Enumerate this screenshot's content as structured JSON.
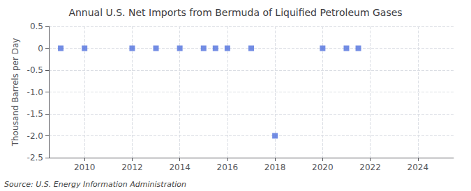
{
  "chart_data": {
    "type": "scatter",
    "title": "Annual U.S. Net Imports from Bermuda of Liquified Petroleum Gases",
    "ylabel": "Thousand Barrels per Day",
    "source": "Source: U.S. Energy Information Administration",
    "x": [
      2009,
      2010,
      2012,
      2013,
      2014,
      2015,
      2015.5,
      2016,
      2017,
      2018,
      2020,
      2021,
      2021.5
    ],
    "values": [
      0,
      0,
      0,
      0,
      0,
      0,
      0,
      0,
      0,
      -2.0,
      0,
      0,
      0
    ],
    "xlim": [
      2008.5,
      2025.5
    ],
    "xticks": [
      2010,
      2012,
      2014,
      2016,
      2018,
      2020,
      2022,
      2024
    ],
    "ylim": [
      -2.5,
      0.5
    ],
    "yticks": [
      0.5,
      0,
      -0.5,
      {
        "value": -1.0,
        "label": "-1.0"
      },
      -1.5,
      {
        "value": -2.0,
        "label": "-2.0"
      },
      -2.5
    ],
    "marker": "square",
    "grid": true
  }
}
